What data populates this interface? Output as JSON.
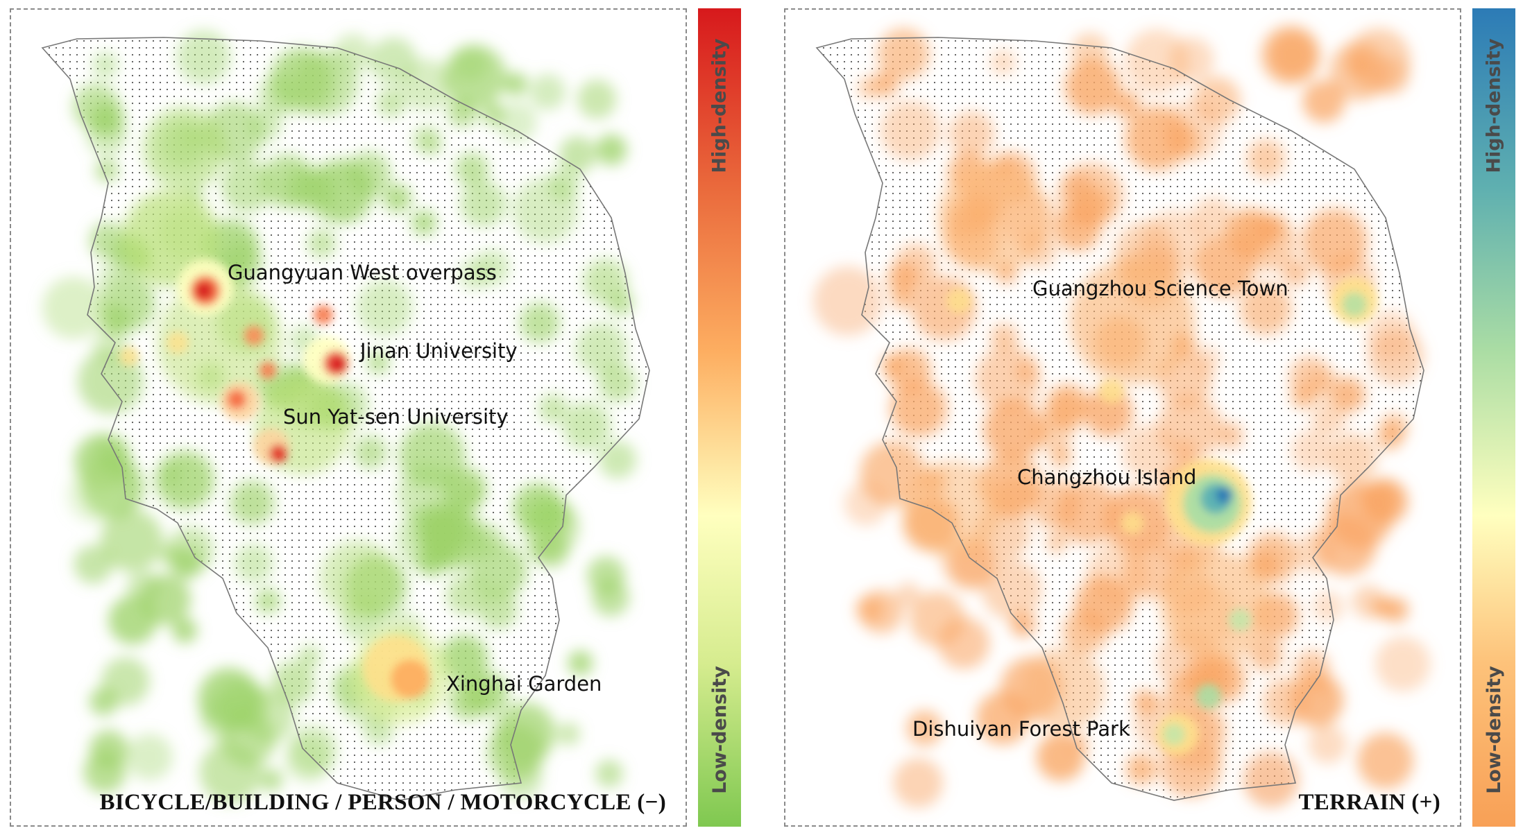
{
  "panels": [
    {
      "title": "BICYCLE/BUILDING / PERSON / MOTORCYCLE (−)",
      "colorbar": {
        "high_label": "High-density",
        "low_label": "Low-density",
        "colors": [
          "#d7191c",
          "#ea6a3c",
          "#fdae61",
          "#ffffbf",
          "#d6ec8f",
          "#7fc850"
        ]
      },
      "places": [
        {
          "name": "Guangyuan West overpass"
        },
        {
          "name": "Jinan University"
        },
        {
          "name": "Sun Yat-sen University"
        },
        {
          "name": "Xinghai Garden"
        }
      ]
    },
    {
      "title": "TERRAIN (+)",
      "colorbar": {
        "high_label": "High-density",
        "low_label": "Low-density",
        "colors": [
          "#2c7bb6",
          "#5fb0b0",
          "#abdda4",
          "#ffffbf",
          "#fdc27a",
          "#f8a056"
        ]
      },
      "places": [
        {
          "name": "Guangzhou Science Town"
        },
        {
          "name": "Changzhou Island"
        },
        {
          "name": "Dishuiyan Forest Park"
        }
      ]
    }
  ]
}
